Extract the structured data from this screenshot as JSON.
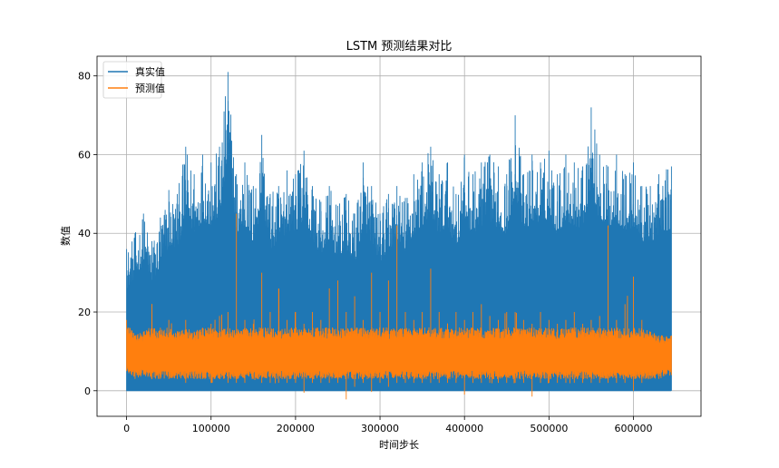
{
  "chart_data": {
    "type": "line",
    "title": "LSTM 预测结果对比",
    "xlabel": "时间步长",
    "ylabel": "数值",
    "xlim": [
      -35000,
      680000
    ],
    "ylim": [
      -6.5,
      85
    ],
    "xticks": [
      0,
      100000,
      200000,
      300000,
      400000,
      500000,
      600000
    ],
    "xtick_labels": [
      "0",
      "100000",
      "200000",
      "300000",
      "400000",
      "500000",
      "600000"
    ],
    "yticks": [
      0,
      20,
      40,
      60,
      80
    ],
    "ytick_labels": [
      "0",
      "20",
      "40",
      "60",
      "80"
    ],
    "grid": true,
    "legend": "top-left",
    "series": [
      {
        "name": "真实值",
        "color": "#1f77b4",
        "x": [
          0,
          10000,
          20000,
          30000,
          40000,
          50000,
          60000,
          70000,
          80000,
          90000,
          100000,
          110000,
          120000,
          130000,
          140000,
          150000,
          160000,
          170000,
          180000,
          190000,
          200000,
          210000,
          220000,
          230000,
          240000,
          250000,
          260000,
          270000,
          280000,
          290000,
          300000,
          310000,
          320000,
          330000,
          340000,
          350000,
          360000,
          370000,
          380000,
          390000,
          400000,
          410000,
          420000,
          430000,
          440000,
          450000,
          460000,
          470000,
          480000,
          490000,
          500000,
          510000,
          520000,
          530000,
          540000,
          550000,
          560000,
          570000,
          580000,
          590000,
          600000,
          610000,
          620000,
          630000,
          645000
        ],
        "max": [
          36,
          40,
          45,
          38,
          44,
          51,
          50,
          62,
          55,
          60,
          58,
          62,
          81,
          55,
          58,
          52,
          65,
          50,
          52,
          56,
          55,
          61,
          52,
          48,
          52,
          47,
          50,
          45,
          58,
          52,
          45,
          50,
          52,
          49,
          55,
          58,
          62,
          55,
          58,
          50,
          60,
          55,
          58,
          60,
          57,
          55,
          70,
          55,
          60,
          58,
          61,
          55,
          60,
          58,
          57,
          72,
          60,
          57,
          60,
          55,
          58,
          52,
          52,
          55,
          57
        ],
        "min": [
          0,
          0,
          0,
          0,
          0,
          0,
          0,
          0,
          0,
          0,
          0,
          0,
          0,
          0,
          0,
          0,
          0,
          0,
          0,
          0,
          0,
          0,
          0,
          0,
          0,
          0,
          0,
          0,
          0,
          0,
          0,
          0,
          0,
          0,
          0,
          0,
          0,
          0,
          0,
          0,
          0,
          0,
          0,
          0,
          0,
          0,
          0,
          0,
          0,
          0,
          0,
          0,
          0,
          0,
          0,
          0,
          0,
          0,
          0,
          0,
          0,
          0,
          0,
          0,
          0
        ]
      },
      {
        "name": "预测值",
        "color": "#ff7f0e",
        "x": [
          0,
          10000,
          20000,
          30000,
          40000,
          50000,
          60000,
          70000,
          80000,
          90000,
          100000,
          110000,
          120000,
          130000,
          140000,
          150000,
          160000,
          170000,
          180000,
          190000,
          200000,
          210000,
          220000,
          230000,
          240000,
          250000,
          260000,
          270000,
          280000,
          290000,
          300000,
          310000,
          320000,
          330000,
          340000,
          350000,
          360000,
          370000,
          380000,
          390000,
          400000,
          410000,
          420000,
          430000,
          440000,
          450000,
          460000,
          470000,
          480000,
          490000,
          500000,
          510000,
          520000,
          530000,
          540000,
          550000,
          560000,
          570000,
          580000,
          590000,
          600000,
          610000,
          620000,
          630000,
          645000
        ],
        "max": [
          18,
          14,
          15,
          22,
          16,
          18,
          15,
          18,
          15,
          16,
          17,
          19,
          20,
          45,
          18,
          17,
          30,
          20,
          26,
          18,
          20,
          17,
          20,
          18,
          26,
          28,
          20,
          24,
          18,
          30,
          20,
          28,
          42,
          20,
          18,
          20,
          31,
          20,
          17,
          20,
          18,
          20,
          22,
          19,
          18,
          20,
          20,
          18,
          17,
          20,
          18,
          17,
          18,
          20,
          17,
          18,
          19,
          42,
          18,
          22,
          29,
          18,
          15,
          14,
          14
        ],
        "min": [
          5,
          3,
          4,
          3,
          3,
          3,
          3,
          2,
          3,
          3,
          2,
          3,
          2,
          2,
          2,
          3,
          2,
          2,
          2,
          2,
          2,
          -0.5,
          2,
          2,
          2,
          2,
          -2.2,
          1,
          2,
          -0.3,
          2,
          1,
          2,
          2,
          2,
          2,
          2,
          2,
          2,
          2,
          -1,
          2,
          2,
          2,
          2,
          2,
          2,
          2,
          -1.5,
          2,
          2,
          2,
          2,
          2,
          2,
          2,
          2,
          2,
          2,
          2,
          0,
          2,
          3,
          3,
          4
        ]
      }
    ]
  }
}
